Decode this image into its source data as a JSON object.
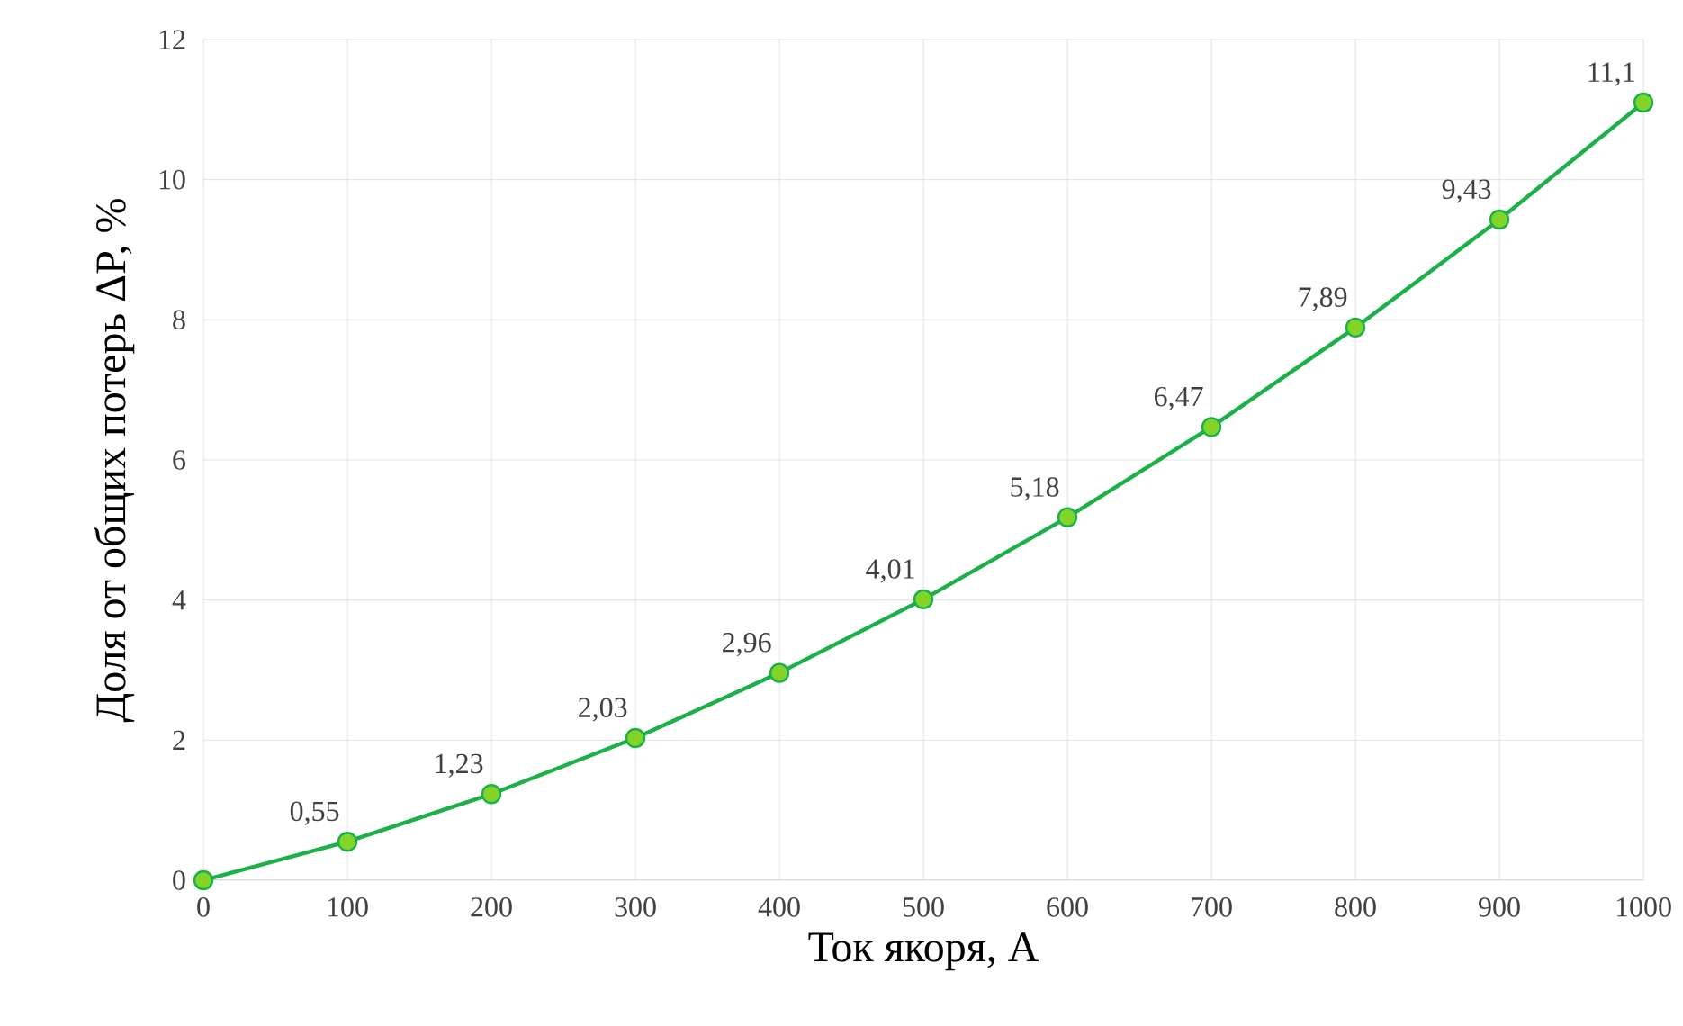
{
  "chart_data": {
    "type": "line",
    "xlabel": "Ток якоря, А",
    "ylabel": "Доля от общих потерь  ΔP, %",
    "x": [
      0,
      100,
      200,
      300,
      400,
      500,
      600,
      700,
      800,
      900,
      1000
    ],
    "series": [
      {
        "color": "#1cb049",
        "values": [
          0,
          0.55,
          1.23,
          2.03,
          2.96,
          4.01,
          5.18,
          6.47,
          7.89,
          9.43,
          11.1
        ],
        "value_labels": [
          null,
          "0,55",
          "1,23",
          "2,03",
          "2,96",
          "4,01",
          "5,18",
          "6,47",
          "7,89",
          "9,43",
          "11,1"
        ]
      }
    ],
    "xlim": [
      0,
      1000
    ],
    "ylim": [
      0,
      12
    ],
    "xticks": [
      0,
      100,
      200,
      300,
      400,
      500,
      600,
      700,
      800,
      900,
      1000
    ],
    "yticks": [
      0,
      2,
      4,
      6,
      8,
      10,
      12
    ],
    "grid": true,
    "marker": "circle",
    "line_style": "solid"
  }
}
